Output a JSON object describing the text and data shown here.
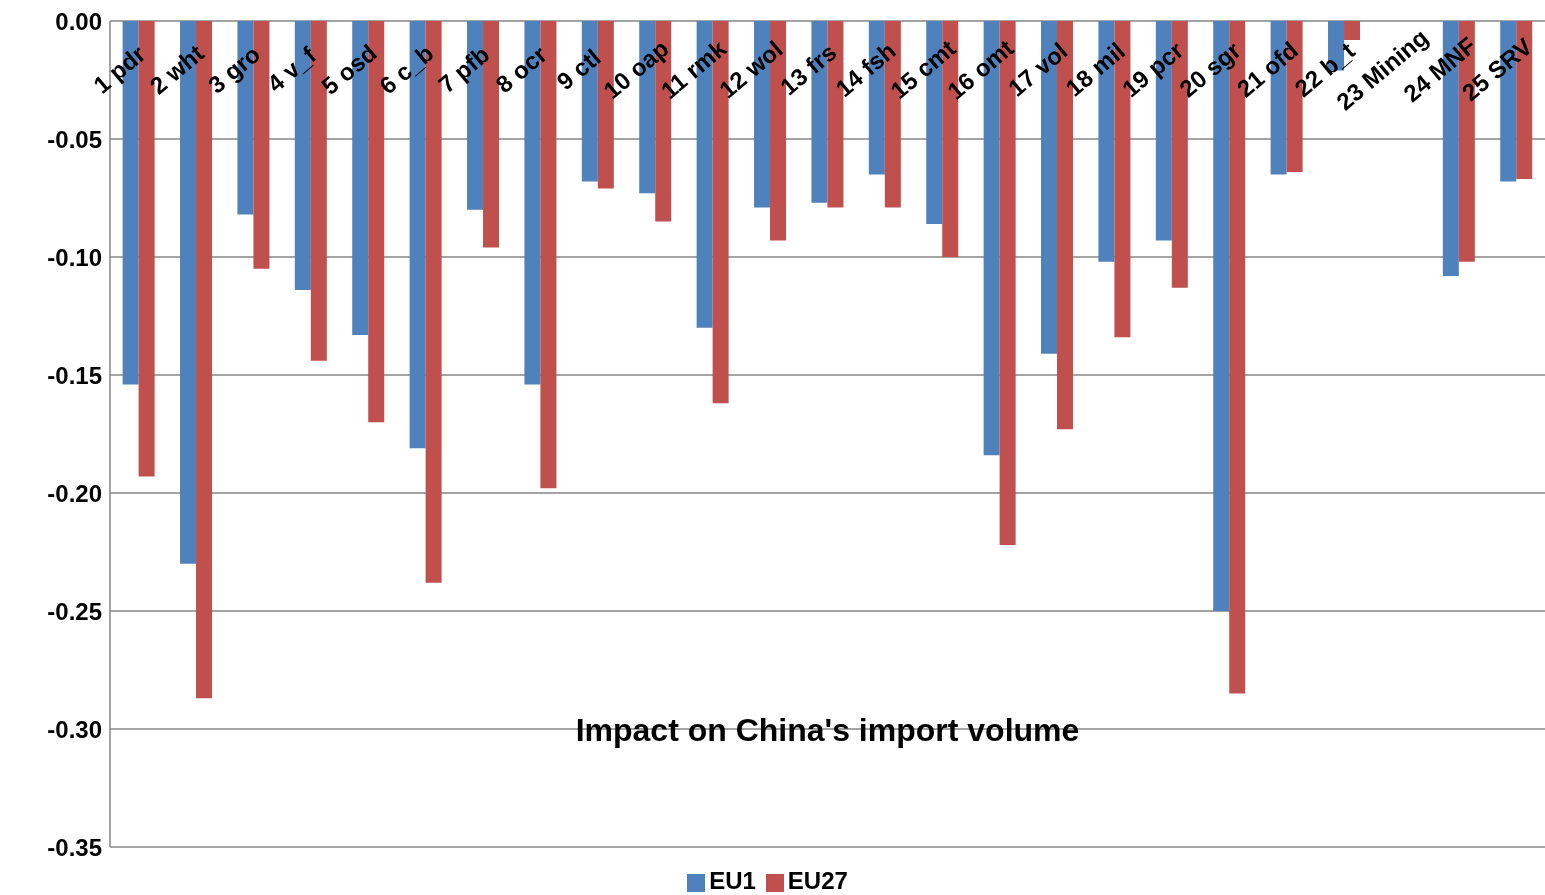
{
  "chart_data": {
    "type": "bar",
    "title": "Impact on China's import volume",
    "categories": [
      "1 pdr",
      "2 wht",
      "3 gro",
      "4 v_f",
      "5 osd",
      "6 c_b",
      "7 pfb",
      "8 ocr",
      "9 ctl",
      "10 oap",
      "11 rmk",
      "12 wol",
      "13 frs",
      "14 fsh",
      "15 cmt",
      "16 omt",
      "17 vol",
      "18 mil",
      "19 pcr",
      "20 sgr",
      "21 ofd",
      "22 b_t",
      "23 Mining",
      "24 MNF",
      "25 SRV"
    ],
    "series": [
      {
        "name": "EU1",
        "color": "#4f81bd",
        "values": [
          -0.154,
          -0.23,
          -0.082,
          -0.114,
          -0.133,
          -0.181,
          -0.08,
          -0.154,
          -0.068,
          -0.073,
          -0.13,
          -0.079,
          -0.077,
          -0.065,
          -0.086,
          -0.184,
          -0.141,
          -0.102,
          -0.093,
          -0.25,
          -0.065,
          -0.021,
          null,
          -0.108,
          -0.068
        ]
      },
      {
        "name": "EU27",
        "color": "#c0504d",
        "values": [
          -0.193,
          -0.287,
          -0.105,
          -0.144,
          -0.17,
          -0.238,
          -0.096,
          -0.198,
          -0.071,
          -0.085,
          -0.162,
          -0.093,
          -0.079,
          -0.079,
          -0.1,
          -0.222,
          -0.173,
          -0.134,
          -0.113,
          -0.285,
          -0.064,
          -0.008,
          null,
          -0.102,
          -0.067
        ]
      }
    ],
    "ylim": [
      -0.35,
      0
    ],
    "yticks": [
      {
        "value": 0,
        "label": "0.00"
      },
      {
        "value": -0.05,
        "label": "-0.05"
      },
      {
        "value": -0.1,
        "label": "-0.10"
      },
      {
        "value": -0.15,
        "label": "-0.15"
      },
      {
        "value": -0.2,
        "label": "-0.20"
      },
      {
        "value": -0.25,
        "label": "-0.25"
      },
      {
        "value": -0.3,
        "label": "-0.30"
      },
      {
        "value": -0.35,
        "label": "-0.35"
      }
    ],
    "grid": "y",
    "legend": "bottom"
  }
}
